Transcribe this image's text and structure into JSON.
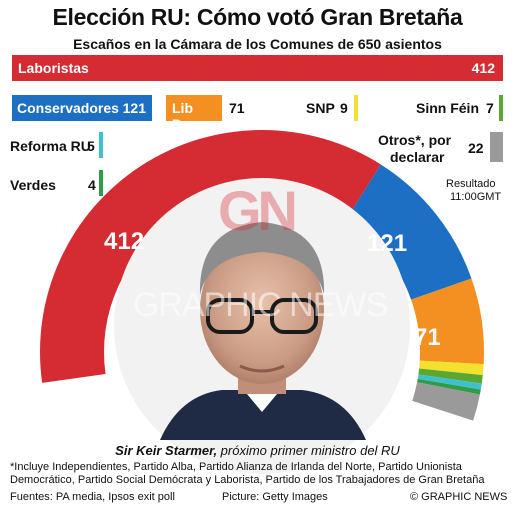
{
  "title": "Elección RU: Cómo votó Gran Bretaña",
  "subtitle": "Escaños en la Cámara de los Comunes de 650 asientos",
  "parties": {
    "labour": {
      "name": "Laboristas",
      "seats": "412",
      "color": "#d52b33"
    },
    "conservative": {
      "name": "Conservadores",
      "seats": "121",
      "color": "#1d6fc4"
    },
    "libdem": {
      "name": "Lib Dem",
      "seats": "71",
      "color": "#f39021"
    },
    "snp": {
      "name": "SNP",
      "seats": "9",
      "color": "#f4e02e"
    },
    "sinnfein": {
      "name": "Sinn Féin",
      "seats": "7",
      "color": "#5aa832"
    },
    "reform": {
      "name": "Reforma RU",
      "seats": "5",
      "color": "#3fc0d0"
    },
    "greens": {
      "name": "Verdes",
      "seats": "4",
      "color": "#2f9d45"
    },
    "others": {
      "name": "Otros*, por declarar",
      "name_line1": "Otros*, por",
      "name_line2": "declarar",
      "seats": "22",
      "color": "#9a9a9a"
    }
  },
  "result_time": {
    "line1": "Resultado",
    "line2": "11:00GMT"
  },
  "photo": {
    "caption_name": "Sir Keir Starmer,",
    "caption_rest": " próximo primer ministro del RU",
    "watermark": "GRAPHIC NEWS",
    "logo": "GN"
  },
  "footnote": "*Incluye Independientes, Partido Alba, Partido Alianza de Irlanda del Norte, Partido Unionista Democrático, Partido Social Demócrata y Laborista, Partido de los Trabajadores de Gran Bretaña",
  "footnote_line1": "*Incluye Independientes, Partido Alba, Partido Alianza de Irlanda del Norte, Partido Unionista",
  "footnote_line2": "Democrático, Partido Social Demócrata y Laborista, Partido de los Trabajadores de Gran Bretaña",
  "sources": "Fuentes: PA media, Ipsos exit poll",
  "credit": "Picture: Getty Images",
  "copyright": "© GRAPHIC NEWS",
  "chart_data": {
    "type": "pie",
    "title": "Elección RU: Cómo votó Gran Bretaña",
    "subtitle": "Escaños en la Cámara de los Comunes de 650 asientos",
    "categories": [
      "Laboristas",
      "Conservadores",
      "Lib Dem",
      "SNP",
      "Sinn Féin",
      "Reforma RU",
      "Verdes",
      "Otros*, por declarar"
    ],
    "values": [
      412,
      121,
      71,
      9,
      7,
      5,
      4,
      22
    ],
    "colors": [
      "#d52b33",
      "#1d6fc4",
      "#f39021",
      "#f4e02e",
      "#5aa832",
      "#3fc0d0",
      "#2f9d45",
      "#9a9a9a"
    ],
    "total": 650,
    "style": "semicircle-donut"
  }
}
